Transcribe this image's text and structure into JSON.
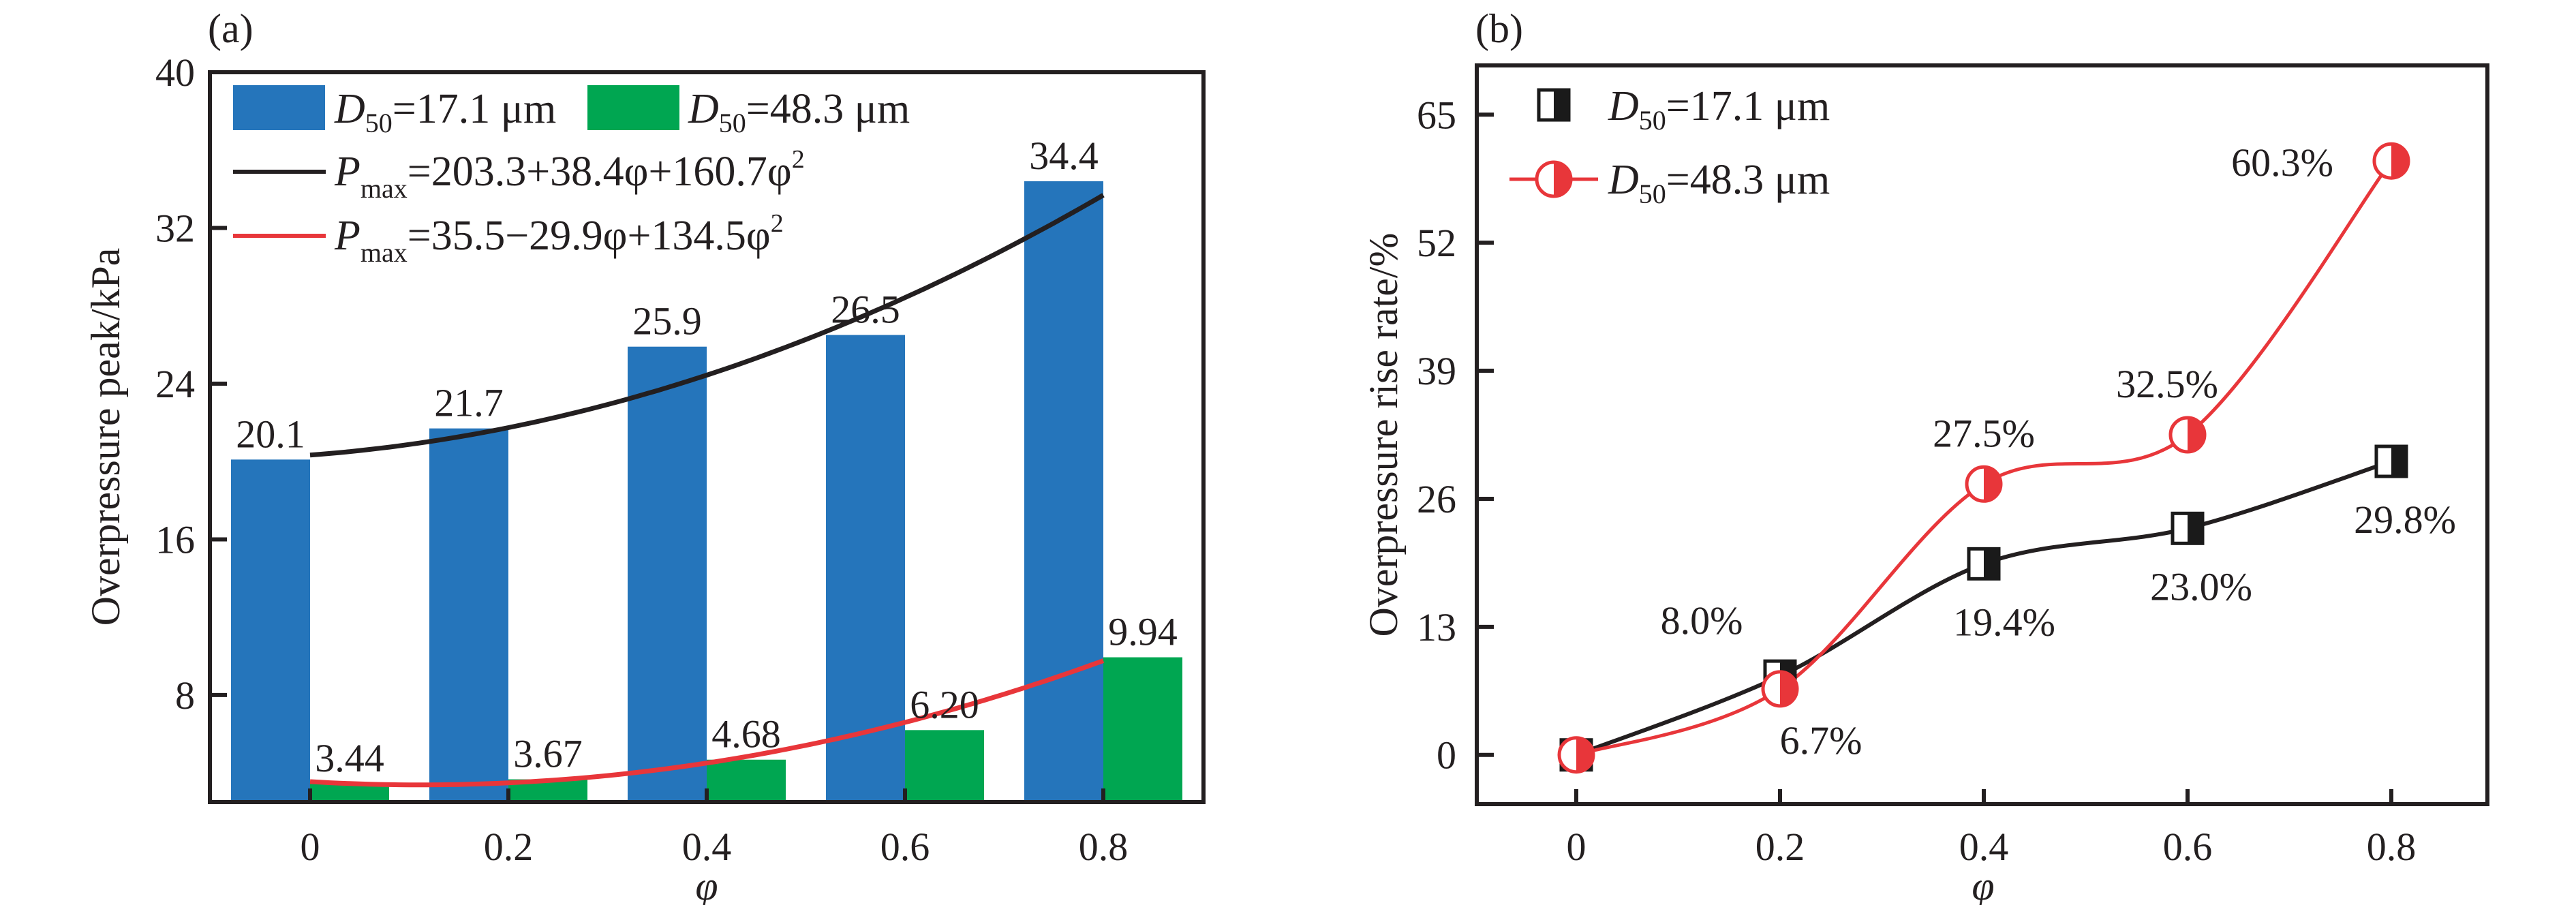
{
  "figure": {
    "panel_a_label": "(a)",
    "panel_b_label": "(b)"
  },
  "chart_data": [
    {
      "panel": "(a)",
      "type": "bar",
      "title": "",
      "xlabel": "φ",
      "ylabel": "Overpressure peak/kPa",
      "categories": [
        "0",
        "0.2",
        "0.4",
        "0.6",
        "0.8"
      ],
      "x": [
        0,
        0.2,
        0.4,
        0.6,
        0.8
      ],
      "ylim": [
        2.5,
        40
      ],
      "yticks": [
        8,
        16,
        24,
        32,
        40
      ],
      "grid": false,
      "legend_position": "top-left",
      "series": [
        {
          "name": "D50=17.1 μm",
          "legend_main": "D",
          "legend_sub": "50",
          "legend_rest": "=17.1 μm",
          "color": "#2575bb",
          "values": [
            20.1,
            21.7,
            25.9,
            26.5,
            34.4
          ],
          "labels": [
            "20.1",
            "21.7",
            "25.9",
            "26.5",
            "34.4"
          ]
        },
        {
          "name": "D50=48.3 μm",
          "legend_main": "D",
          "legend_sub": "50",
          "legend_rest": "=48.3 μm",
          "color": "#00a651",
          "values": [
            3.44,
            3.67,
            4.68,
            6.2,
            9.94
          ],
          "labels": [
            "3.44",
            "3.67",
            "4.68",
            "6.20",
            "9.94"
          ]
        }
      ],
      "fits": [
        {
          "name": "Pmax=203.3+38.4φ+160.7φ2",
          "legend_main": "P",
          "legend_sub": "max",
          "legend_rest": "=203.3+38.4φ+160.7φ",
          "legend_sup": "2",
          "color": "#231f20",
          "coefficients": [
            203.3,
            38.4,
            160.7
          ],
          "display_scale": 0.1
        },
        {
          "name": "Pmax=35.5−29.9φ+134.5φ2",
          "legend_main": "P",
          "legend_sub": "max",
          "legend_rest": "=35.5−29.9φ+134.5φ",
          "legend_sup": "2",
          "color": "#e8363a",
          "coefficients": [
            35.5,
            -29.9,
            134.5
          ],
          "display_scale": 0.1
        }
      ]
    },
    {
      "panel": "(b)",
      "type": "line",
      "title": "",
      "xlabel": "φ",
      "ylabel": "Overpressure rise rate/%",
      "x": [
        0,
        0.2,
        0.4,
        0.6,
        0.8
      ],
      "xticks": [
        "0",
        "0.2",
        "0.4",
        "0.6",
        "0.8"
      ],
      "ylim": [
        -5,
        70
      ],
      "yticks": [
        0,
        13,
        26,
        39,
        52,
        65
      ],
      "grid": false,
      "legend_position": "top-left",
      "series": [
        {
          "name": "D50=17.1 μm",
          "legend_main": "D",
          "legend_sub": "50",
          "legend_rest": "=17.1 μm",
          "color": "#231f20",
          "marker": "half-filled-square",
          "values": [
            0,
            8.0,
            19.4,
            23.0,
            29.8
          ],
          "labels": [
            "",
            "8.0%",
            "19.4%",
            "23.0%",
            "29.8%"
          ]
        },
        {
          "name": "D50=48.3 μm",
          "legend_main": "D",
          "legend_sub": "50",
          "legend_rest": "=48.3 μm",
          "color": "#e8363a",
          "marker": "half-filled-circle",
          "values": [
            0,
            6.7,
            27.5,
            32.5,
            60.3
          ],
          "labels": [
            "",
            "6.7%",
            "27.5%",
            "32.5%",
            "60.3%"
          ]
        }
      ]
    }
  ]
}
